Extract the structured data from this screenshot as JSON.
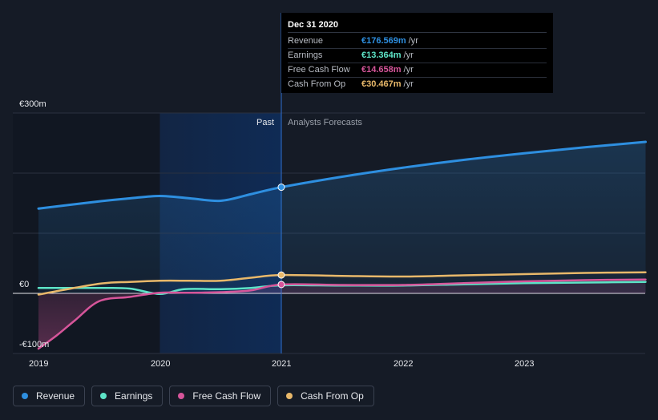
{
  "tooltip": {
    "date": "Dec 31 2020",
    "rows": [
      {
        "label": "Revenue",
        "value": "€176.569m",
        "unit": "/yr",
        "color": "#2e8fe0"
      },
      {
        "label": "Earnings",
        "value": "€13.364m",
        "unit": "/yr",
        "color": "#5de4c7"
      },
      {
        "label": "Free Cash Flow",
        "value": "€14.658m",
        "unit": "/yr",
        "color": "#d6559a"
      },
      {
        "label": "Cash From Op",
        "value": "€30.467m",
        "unit": "/yr",
        "color": "#e8b86a"
      }
    ]
  },
  "segments": {
    "past": "Past",
    "forecast": "Analysts Forecasts"
  },
  "legend": [
    {
      "label": "Revenue",
      "color": "#2e8fe0"
    },
    {
      "label": "Earnings",
      "color": "#5de4c7"
    },
    {
      "label": "Free Cash Flow",
      "color": "#d6559a"
    },
    {
      "label": "Cash From Op",
      "color": "#e8b86a"
    }
  ],
  "chart_data": {
    "type": "line",
    "ylim": [
      -100,
      300
    ],
    "yticks": [
      {
        "value": 300,
        "label": "€300m"
      },
      {
        "value": 0,
        "label": "€0"
      },
      {
        "value": -100,
        "label": "-€100m"
      }
    ],
    "xticks": [
      {
        "value": 2019.0,
        "label": "2019"
      },
      {
        "value": 2020.0,
        "label": "2020"
      },
      {
        "value": 2021.0,
        "label": "2021"
      },
      {
        "value": 2022.0,
        "label": "2022"
      },
      {
        "value": 2023.0,
        "label": "2023"
      }
    ],
    "xlim": [
      2019.0,
      2024.0
    ],
    "past_end": 2021.0,
    "highlight_start": 2020.0,
    "series": [
      {
        "name": "Revenue",
        "color": "#2e8fe0",
        "x": [
          2019.0,
          2019.5,
          2019.75,
          2020.0,
          2020.25,
          2020.5,
          2020.75,
          2021.0,
          2021.5,
          2022.0,
          2022.5,
          2023.0,
          2023.5,
          2024.0
        ],
        "y": [
          141,
          153,
          158,
          162,
          158,
          154,
          165,
          176.6,
          194,
          209,
          222,
          233,
          243,
          252
        ]
      },
      {
        "name": "Earnings",
        "color": "#5de4c7",
        "x": [
          2019.0,
          2019.5,
          2019.75,
          2020.0,
          2020.2,
          2020.5,
          2020.75,
          2021.0,
          2021.5,
          2022.0,
          2022.5,
          2023.0,
          2023.5,
          2024.0
        ],
        "y": [
          9,
          9,
          8,
          -1,
          7,
          7,
          9,
          13.4,
          13,
          13,
          15,
          17,
          18,
          19
        ]
      },
      {
        "name": "Free Cash Flow",
        "color": "#d6559a",
        "x": [
          2019.0,
          2019.15,
          2019.3,
          2019.5,
          2019.75,
          2020.0,
          2020.25,
          2020.5,
          2020.75,
          2021.0,
          2021.5,
          2022.0,
          2022.5,
          2023.0,
          2023.5,
          2024.0
        ],
        "y": [
          -92,
          -70,
          -45,
          -13,
          -6,
          1,
          1,
          2,
          5,
          14.7,
          14,
          14,
          17,
          20,
          22,
          23
        ]
      },
      {
        "name": "Cash From Op",
        "color": "#e8b86a",
        "x": [
          2019.0,
          2019.5,
          2019.75,
          2020.0,
          2020.25,
          2020.5,
          2020.75,
          2021.0,
          2021.5,
          2022.0,
          2022.5,
          2023.0,
          2023.5,
          2024.0
        ],
        "y": [
          -2,
          16,
          19,
          21,
          21,
          21,
          26,
          30.5,
          29,
          28,
          30,
          32,
          34,
          35
        ]
      }
    ]
  }
}
